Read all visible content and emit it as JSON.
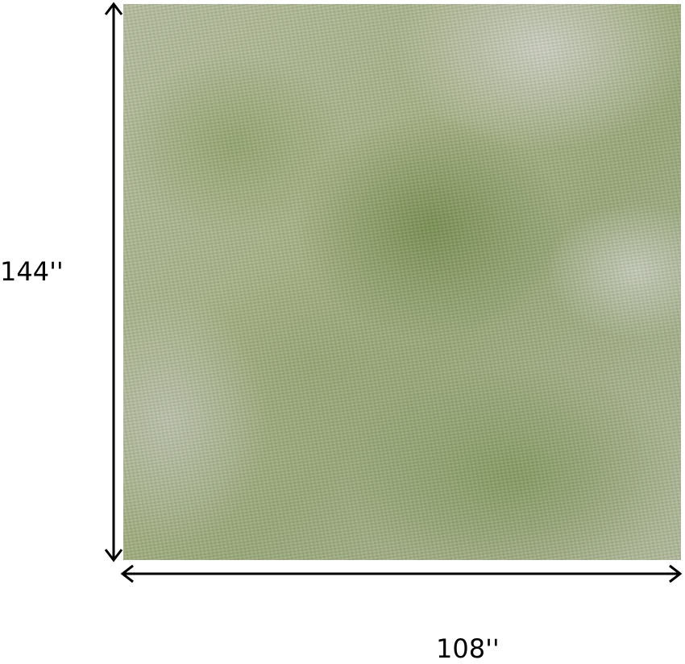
{
  "product": {
    "description_colors": {
      "base": "#b5bd9f",
      "accent_green": "#7f9456",
      "light": "#cdd0c4"
    }
  },
  "dimensions": {
    "height_label": "144''",
    "width_label": "108''"
  }
}
